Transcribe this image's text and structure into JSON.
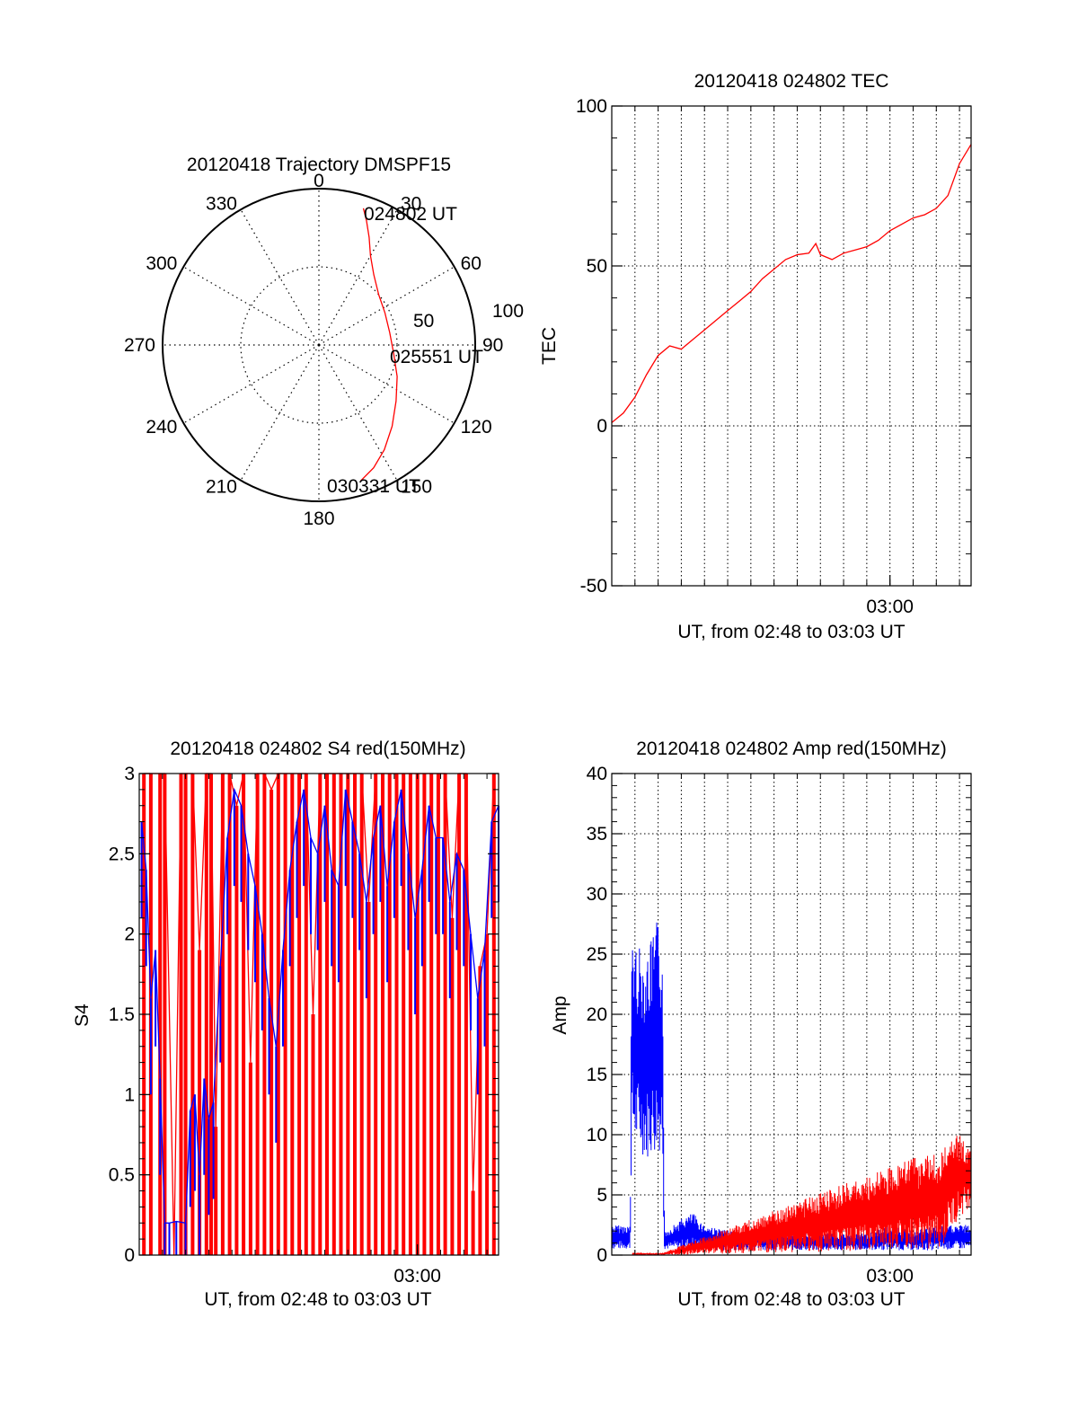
{
  "colors": {
    "red": "#ff0000",
    "blue": "#0000ff",
    "axis": "#000000"
  },
  "chart_data": [
    {
      "id": "trajectory",
      "type": "polar",
      "title": "20120418 Trajectory DMSPF15",
      "angle_labels": [
        "0",
        "30",
        "60",
        "90",
        "120",
        "150",
        "180",
        "210",
        "240",
        "270",
        "300",
        "330"
      ],
      "radius_labels": [
        "50",
        "100"
      ],
      "rlim": [
        0,
        100
      ],
      "track": {
        "color": "red",
        "points": [
          {
            "az": 18,
            "r": 92
          },
          {
            "az": 21,
            "r": 85
          },
          {
            "az": 25,
            "r": 76
          },
          {
            "az": 30,
            "r": 66
          },
          {
            "az": 38,
            "r": 57
          },
          {
            "az": 50,
            "r": 50
          },
          {
            "az": 64,
            "r": 47
          },
          {
            "az": 80,
            "r": 46
          },
          {
            "az": 96,
            "r": 48
          },
          {
            "az": 112,
            "r": 54
          },
          {
            "az": 126,
            "r": 61
          },
          {
            "az": 138,
            "r": 70
          },
          {
            "az": 148,
            "r": 79
          },
          {
            "az": 156,
            "r": 86
          },
          {
            "az": 163,
            "r": 91
          }
        ]
      },
      "annotations": [
        "024802 UT",
        "025551 UT",
        "030331 UT"
      ]
    },
    {
      "id": "tec",
      "type": "line",
      "title": "20120418 024802 TEC",
      "xlabel": "UT, from 02:48 to 03:03 UT",
      "ylabel": "TEC",
      "xlim": [
        0,
        15.5
      ],
      "ylim": [
        -50,
        100
      ],
      "yticks": [
        "-50",
        "0",
        "50",
        "100"
      ],
      "xticks": [
        {
          "x": 12,
          "label": "03:00"
        }
      ],
      "grid": true,
      "series": [
        {
          "color": "red",
          "x": [
            0,
            0.5,
            1,
            1.5,
            2,
            2.5,
            3,
            3.5,
            4,
            4.5,
            5,
            5.5,
            6,
            6.5,
            7,
            7.5,
            8,
            8.5,
            8.8,
            9,
            9.5,
            10,
            10.5,
            11,
            11.5,
            12,
            12.5,
            13,
            13.5,
            14,
            14.5,
            15,
            15.5
          ],
          "y": [
            1,
            4,
            9,
            16,
            22,
            25,
            24,
            27,
            30,
            33,
            36,
            39,
            42,
            46,
            49,
            52,
            53.5,
            54,
            57,
            53.5,
            52,
            54,
            55,
            56,
            58,
            61,
            63,
            65,
            66,
            68,
            72,
            82,
            88
          ]
        }
      ]
    },
    {
      "id": "s4",
      "type": "line",
      "title": "20120418 024802 S4 red(150MHz)",
      "xlabel": "UT, from 02:48 to 03:03 UT",
      "ylabel": "S4",
      "xlim": [
        0,
        15.5
      ],
      "ylim": [
        0,
        3
      ],
      "yticks": [
        "0",
        "0.5",
        "1",
        "1.5",
        "2",
        "2.5",
        "3"
      ],
      "xticks": [
        {
          "x": 12,
          "label": "03:00"
        }
      ],
      "grid": false,
      "series": [
        {
          "color": "red",
          "x": [
            0.2,
            0.5,
            0.9,
            1.1,
            1.5,
            1.8,
            2.0,
            2.3,
            2.6,
            2.9,
            3.1,
            3.3,
            3.6,
            3.9,
            4.2,
            4.5,
            4.8,
            5.1,
            5.4,
            5.7,
            6.0,
            6.3,
            6.6,
            6.9,
            7.2,
            7.5,
            7.8,
            8.1,
            8.4,
            8.7,
            9.0,
            9.3,
            9.6,
            9.9,
            10.2,
            10.5,
            10.8,
            11.1,
            11.4,
            11.7,
            12.0,
            12.3,
            12.6,
            12.9,
            13.2,
            13.5,
            13.8,
            14.1,
            14.4,
            14.7,
            15.0,
            15.3
          ],
          "y": [
            3,
            3,
            3,
            3,
            0,
            3,
            3,
            3,
            1.9,
            3,
            3,
            0.8,
            3,
            3,
            2.8,
            3,
            1.2,
            3,
            3,
            2.9,
            3,
            3,
            3,
            3,
            3,
            1.5,
            3,
            3,
            3,
            3,
            3,
            3,
            3,
            2.2,
            3,
            3,
            3,
            3,
            3,
            3,
            3,
            3,
            3,
            3,
            3,
            2.1,
            3,
            3,
            0.4,
            1.8,
            2.0,
            3
          ]
        },
        {
          "color": "blue",
          "x": [
            0.1,
            0.3,
            0.5,
            0.7,
            0.9,
            1.1,
            1.3,
            1.6,
            2.0,
            2.2,
            2.4,
            2.6,
            2.8,
            3.0,
            3.2,
            3.5,
            3.8,
            4.1,
            4.4,
            4.7,
            5.0,
            5.3,
            5.6,
            5.9,
            6.2,
            6.5,
            6.8,
            7.1,
            7.4,
            7.7,
            8.0,
            8.3,
            8.6,
            8.9,
            9.2,
            9.5,
            9.8,
            10.1,
            10.4,
            10.7,
            11.0,
            11.3,
            11.6,
            11.9,
            12.2,
            12.5,
            12.8,
            13.1,
            13.4,
            13.7,
            14.0,
            14.3,
            14.6,
            14.9,
            15.2,
            15.5
          ],
          "y": [
            2.7,
            2.4,
            1.6,
            1.9,
            1.1,
            0.2,
            0.2,
            0.21,
            0.2,
            0.9,
            1.0,
            0.5,
            1.1,
            0.85,
            0.95,
            1.8,
            2.6,
            2.9,
            2.8,
            2.5,
            2.3,
            2.0,
            1.6,
            1.3,
            1.9,
            2.4,
            2.7,
            2.9,
            2.6,
            2.5,
            2.8,
            2.4,
            2.3,
            2.9,
            2.7,
            2.5,
            2.2,
            2.6,
            2.8,
            2.3,
            2.7,
            2.9,
            2.5,
            2.1,
            2.4,
            2.8,
            2.6,
            2.6,
            2.2,
            2.5,
            2.4,
            2.0,
            1.6,
            1.9,
            2.7,
            2.8
          ]
        }
      ]
    },
    {
      "id": "amp",
      "type": "line",
      "title": "20120418 024802 Amp red(150MHz)",
      "xlabel": "UT, from 02:48 to 03:03 UT",
      "ylabel": "Amp",
      "xlim": [
        0,
        15.5
      ],
      "ylim": [
        0,
        40
      ],
      "yticks": [
        "0",
        "5",
        "10",
        "15",
        "20",
        "25",
        "30",
        "35",
        "40"
      ],
      "xticks": [
        {
          "x": 12,
          "label": "03:00"
        }
      ],
      "grid": true,
      "series": [
        {
          "color": "blue",
          "band": true,
          "x": [
            0,
            0.8,
            0.85,
            1.0,
            1.5,
            2.0,
            2.2,
            2.25,
            2.3,
            3.0,
            3.5,
            4,
            5,
            6,
            6.5,
            7,
            8,
            9,
            10,
            11,
            12,
            13,
            14,
            15,
            15.5
          ],
          "low": [
            0.5,
            0.5,
            9,
            9,
            8,
            8.5,
            9,
            0.5,
            0.5,
            0.4,
            0.5,
            0.4,
            0.4,
            0.4,
            0.4,
            0.4,
            0.4,
            0.4,
            0.4,
            0.4,
            0.4,
            0.4,
            0.4,
            0.5,
            0.5
          ],
          "high": [
            2.5,
            2.5,
            28,
            26,
            25,
            28,
            25,
            5,
            2,
            3,
            3.5,
            2.5,
            2,
            2,
            2.5,
            2,
            2,
            1.8,
            1.8,
            1.8,
            2.5,
            2,
            2.5,
            2.5,
            2.5
          ]
        },
        {
          "color": "red",
          "band": true,
          "x": [
            0.9,
            2.2,
            14.3,
            14.6,
            15.0,
            15.5
          ],
          "low": [
            0,
            0,
            0.5,
            2,
            3,
            4
          ],
          "high": [
            0.2,
            0.2,
            9,
            10,
            10,
            9.5
          ]
        }
      ]
    }
  ]
}
